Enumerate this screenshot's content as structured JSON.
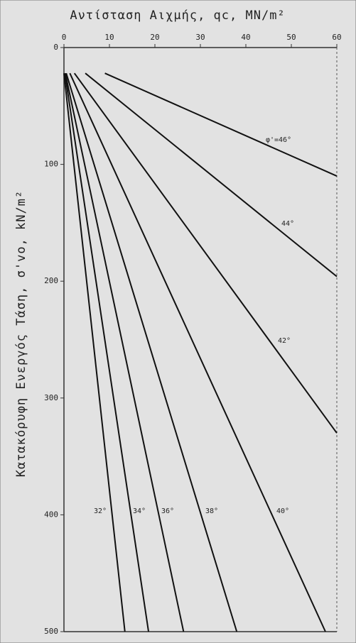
{
  "chart_data": {
    "type": "line",
    "x_title": "Αντίσταση Αιχμής, qc, MN/m²",
    "y_title": "Κατακόρυφη Ενεργός Τάση, σ'vo, kN/m²",
    "xlim": [
      0,
      60
    ],
    "xticks": [
      0,
      10,
      20,
      30,
      40,
      50,
      60
    ],
    "ylim": [
      0,
      500
    ],
    "yticks": [
      0,
      100,
      200,
      300,
      400,
      500
    ],
    "x_axis_position": "top",
    "y_inverted": true,
    "color": "#111",
    "series": [
      {
        "name": "φ'=46°",
        "x": [
          9,
          60
        ],
        "values": [
          22,
          110
        ]
      },
      {
        "name": "44°",
        "x": [
          4.7,
          60
        ],
        "values": [
          22,
          196
        ]
      },
      {
        "name": "42°",
        "x": [
          2.3,
          60
        ],
        "values": [
          22,
          330
        ]
      },
      {
        "name": "40°",
        "x": [
          1.3,
          57.5
        ],
        "values": [
          22,
          500
        ]
      },
      {
        "name": "38°",
        "x": [
          0.5,
          38
        ],
        "values": [
          22,
          500
        ]
      },
      {
        "name": "36°",
        "x": [
          0.3,
          26.3
        ],
        "values": [
          22,
          500
        ]
      },
      {
        "name": "34°",
        "x": [
          0.2,
          18.6
        ],
        "values": [
          22,
          500
        ]
      },
      {
        "name": "32°",
        "x": [
          0,
          13.4
        ],
        "values": [
          22,
          500
        ]
      }
    ]
  }
}
